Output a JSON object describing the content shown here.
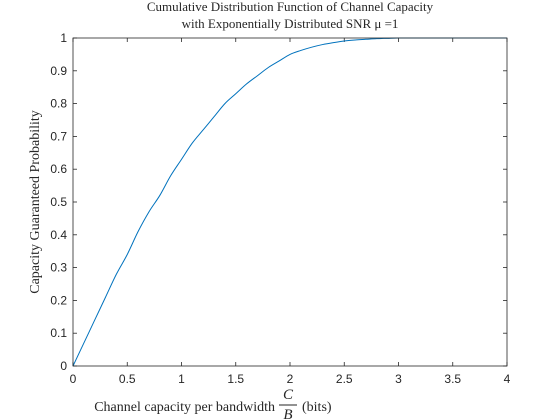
{
  "chart_data": {
    "type": "line",
    "title": "Cumulative Distribution Function of Channel Capacity",
    "subtitle": "with Exponentially Distributed SNR μ =1",
    "xlabel_prefix": "Channel capacity per bandwidth",
    "xlabel_frac_num": "C",
    "xlabel_frac_den": "B",
    "xlabel_suffix": "(bits)",
    "ylabel": "Capacity Guaranteed Probability",
    "xlim": [
      0,
      4
    ],
    "ylim": [
      0,
      1
    ],
    "xticks": [
      "0",
      "0.5",
      "1",
      "1.5",
      "2",
      "2.5",
      "3",
      "3.5",
      "4"
    ],
    "yticks": [
      "0",
      "0.1",
      "0.2",
      "0.3",
      "0.4",
      "0.5",
      "0.6",
      "0.7",
      "0.8",
      "0.9",
      "1"
    ],
    "grid": false,
    "series": [
      {
        "color": "#0072BD",
        "x": [
          0,
          0.1,
          0.2,
          0.3,
          0.4,
          0.5,
          0.6,
          0.7,
          0.8,
          0.9,
          1.0,
          1.1,
          1.2,
          1.3,
          1.4,
          1.5,
          1.6,
          1.7,
          1.8,
          1.9,
          2.0,
          2.1,
          2.2,
          2.3,
          2.4,
          2.5,
          2.6,
          2.7,
          2.8,
          2.9,
          3.0,
          3.2,
          3.4,
          3.6,
          3.8,
          4.0
        ],
        "y": [
          0,
          0.07,
          0.14,
          0.21,
          0.28,
          0.34,
          0.41,
          0.47,
          0.52,
          0.58,
          0.63,
          0.68,
          0.72,
          0.76,
          0.8,
          0.83,
          0.86,
          0.885,
          0.91,
          0.93,
          0.95,
          0.962,
          0.972,
          0.98,
          0.986,
          0.991,
          0.994,
          0.996,
          0.998,
          0.999,
          1.0,
          1.0,
          1.0,
          1.0,
          1.0,
          1.0
        ]
      }
    ]
  }
}
